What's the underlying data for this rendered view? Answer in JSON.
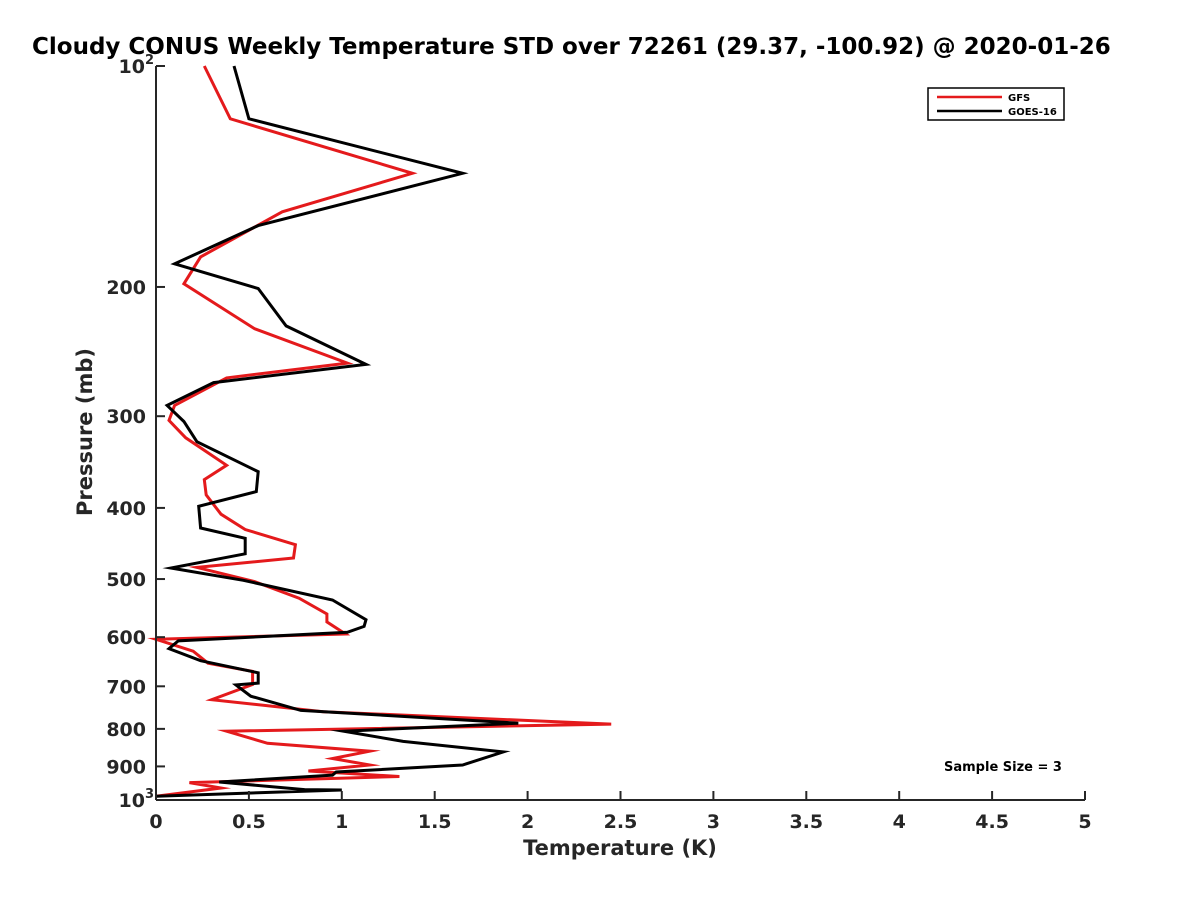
{
  "chart_data": {
    "type": "line",
    "title": "Cloudy CONUS Weekly Temperature STD over 72261 (29.37, -100.92) @ 2020-01-26",
    "xlabel": "Temperature (K)",
    "ylabel": "Pressure (mb)",
    "xlim": [
      0,
      5
    ],
    "ylim": [
      100,
      1000
    ],
    "y_scale": "log",
    "y_reversed": true,
    "x_ticks": [
      "0",
      "0.5",
      "1",
      "1.5",
      "2",
      "2.5",
      "3",
      "3.5",
      "4",
      "4.5",
      "5"
    ],
    "y_ticks": [
      {
        "value": 100,
        "label": "10",
        "sup": "2"
      },
      {
        "value": 200,
        "label": "200"
      },
      {
        "value": 300,
        "label": "300"
      },
      {
        "value": 400,
        "label": "400"
      },
      {
        "value": 500,
        "label": "500"
      },
      {
        "value": 600,
        "label": "600"
      },
      {
        "value": 700,
        "label": "700"
      },
      {
        "value": 800,
        "label": "800"
      },
      {
        "value": 900,
        "label": "900"
      },
      {
        "value": 1000,
        "label": "10",
        "sup": "3"
      }
    ],
    "grid": false,
    "legend_position": "top-right",
    "annotation": "Sample Size = 3",
    "series": [
      {
        "name": "GFS",
        "color": "#e41a1c",
        "points": [
          [
            0.26,
            100
          ],
          [
            0.4,
            118
          ],
          [
            1.38,
            140
          ],
          [
            0.68,
            158
          ],
          [
            0.24,
            182
          ],
          [
            0.15,
            198
          ],
          [
            0.53,
            228
          ],
          [
            1.03,
            254
          ],
          [
            0.38,
            266
          ],
          [
            0.1,
            290
          ],
          [
            0.07,
            304
          ],
          [
            0.16,
            321
          ],
          [
            0.38,
            350
          ],
          [
            0.26,
            366
          ],
          [
            0.27,
            384
          ],
          [
            0.35,
            408
          ],
          [
            0.48,
            428
          ],
          [
            0.75,
            449
          ],
          [
            0.74,
            468
          ],
          [
            0.22,
            482
          ],
          [
            0.53,
            504
          ],
          [
            0.77,
            531
          ],
          [
            0.92,
            558
          ],
          [
            0.92,
            572
          ],
          [
            1.02,
            594
          ],
          [
            0.0,
            604
          ],
          [
            0.2,
            627
          ],
          [
            0.28,
            651
          ],
          [
            0.52,
            668
          ],
          [
            0.52,
            696
          ],
          [
            0.3,
            730
          ],
          [
            0.9,
            758
          ],
          [
            2.45,
            788
          ],
          [
            0.38,
            806
          ],
          [
            0.6,
            837
          ],
          [
            1.15,
            858
          ],
          [
            0.95,
            878
          ],
          [
            1.15,
            896
          ],
          [
            0.82,
            913
          ],
          [
            1.31,
            929
          ],
          [
            0.18,
            947
          ],
          [
            0.35,
            963
          ],
          [
            0.0,
            988
          ]
        ]
      },
      {
        "name": "GOES-16",
        "color": "#000000",
        "points": [
          [
            0.42,
            100
          ],
          [
            0.5,
            118
          ],
          [
            1.65,
            140
          ],
          [
            0.55,
            165
          ],
          [
            0.1,
            186
          ],
          [
            0.55,
            201
          ],
          [
            0.7,
            226
          ],
          [
            1.13,
            255
          ],
          [
            0.31,
            270
          ],
          [
            0.06,
            290
          ],
          [
            0.15,
            305
          ],
          [
            0.22,
            325
          ],
          [
            0.55,
            357
          ],
          [
            0.54,
            380
          ],
          [
            0.23,
            398
          ],
          [
            0.24,
            426
          ],
          [
            0.48,
            440
          ],
          [
            0.48,
            462
          ],
          [
            0.08,
            483
          ],
          [
            0.47,
            502
          ],
          [
            0.95,
            534
          ],
          [
            1.13,
            568
          ],
          [
            1.12,
            580
          ],
          [
            1.03,
            591
          ],
          [
            0.12,
            607
          ],
          [
            0.07,
            622
          ],
          [
            0.24,
            646
          ],
          [
            0.55,
            671
          ],
          [
            0.55,
            693
          ],
          [
            0.43,
            697
          ],
          [
            0.51,
            722
          ],
          [
            0.78,
            755
          ],
          [
            1.95,
            786
          ],
          [
            1.01,
            806
          ],
          [
            1.33,
            832
          ],
          [
            1.87,
            860
          ],
          [
            1.65,
            896
          ],
          [
            0.97,
            916
          ],
          [
            0.95,
            925
          ],
          [
            0.34,
            945
          ],
          [
            0.8,
            968
          ],
          [
            1.0,
            969
          ],
          [
            0.0,
            988
          ]
        ]
      }
    ]
  }
}
